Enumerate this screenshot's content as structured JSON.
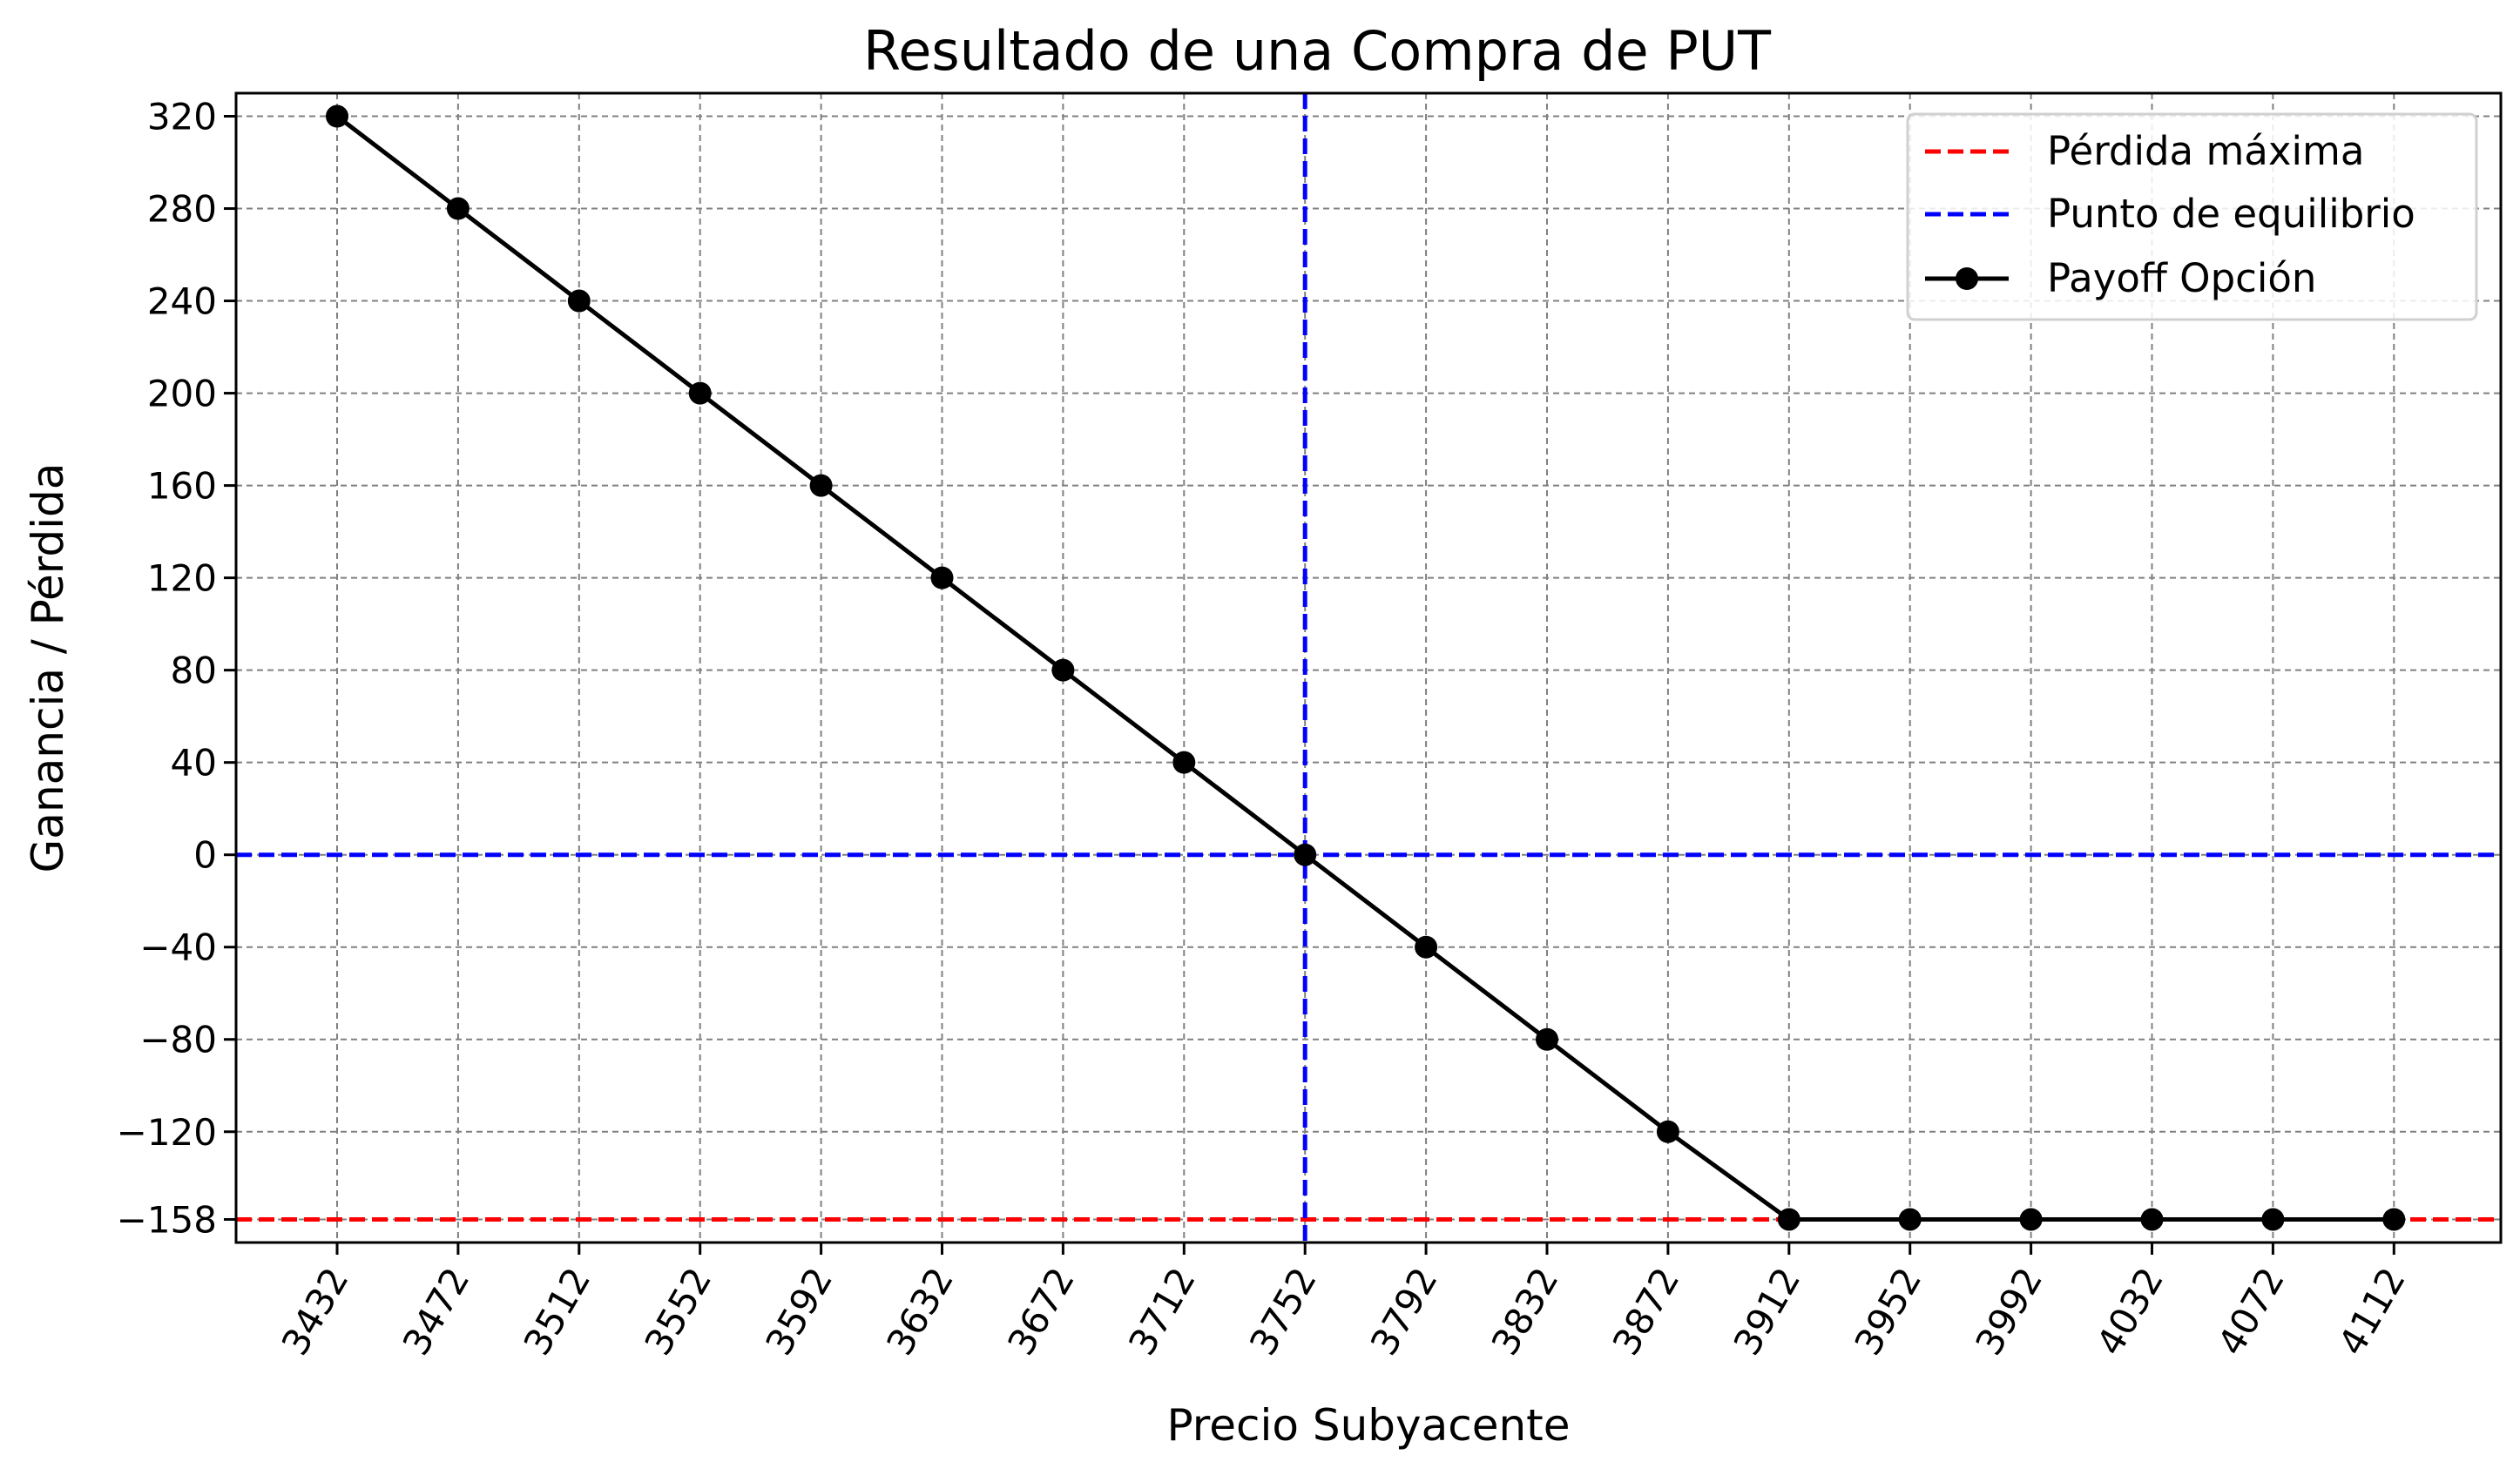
{
  "chart_data": {
    "type": "line",
    "title": "Resultado de una Compra de PUT",
    "xlabel": "Precio Subyacente",
    "ylabel": "Ganancia / Pérdida",
    "x": [
      3432,
      3472,
      3512,
      3552,
      3592,
      3632,
      3672,
      3712,
      3752,
      3792,
      3832,
      3872,
      3912,
      3952,
      3992,
      4032,
      4072,
      4112
    ],
    "x_tick_labels": [
      "3432",
      "3472",
      "3512",
      "3552",
      "3592",
      "3632",
      "3672",
      "3712",
      "3752",
      "3792",
      "3832",
      "3872",
      "3912",
      "3952",
      "3992",
      "4032",
      "4072",
      "4112"
    ],
    "y_ticks": [
      320,
      280,
      240,
      200,
      160,
      120,
      80,
      40,
      0,
      -40,
      -80,
      -120,
      -158
    ],
    "y_tick_labels": [
      "320",
      "280",
      "240",
      "200",
      "160",
      "120",
      "80",
      "40",
      "0",
      "−40",
      "−80",
      "−120",
      "−158"
    ],
    "ylim": [
      -168,
      330
    ],
    "grid": true,
    "legend_position": "top-right",
    "series": [
      {
        "name": "Payoff Opción",
        "color": "#000000",
        "marker": "circle",
        "values": [
          320,
          280,
          240,
          200,
          160,
          120,
          80,
          40,
          0,
          -40,
          -80,
          -120,
          -158,
          -158,
          -158,
          -158,
          -158,
          -158
        ]
      }
    ],
    "reference_lines": [
      {
        "name": "Pérdida máxima",
        "orientation": "horizontal",
        "value": -158,
        "color": "#ff0000",
        "style": "dashed"
      },
      {
        "name": "Punto de equilibrio",
        "orientation": "vertical",
        "value": 3752,
        "color": "#0000ff",
        "style": "dashed"
      },
      {
        "name": "",
        "orientation": "horizontal",
        "value": 0,
        "color": "#0000ff",
        "style": "dashed"
      }
    ]
  }
}
